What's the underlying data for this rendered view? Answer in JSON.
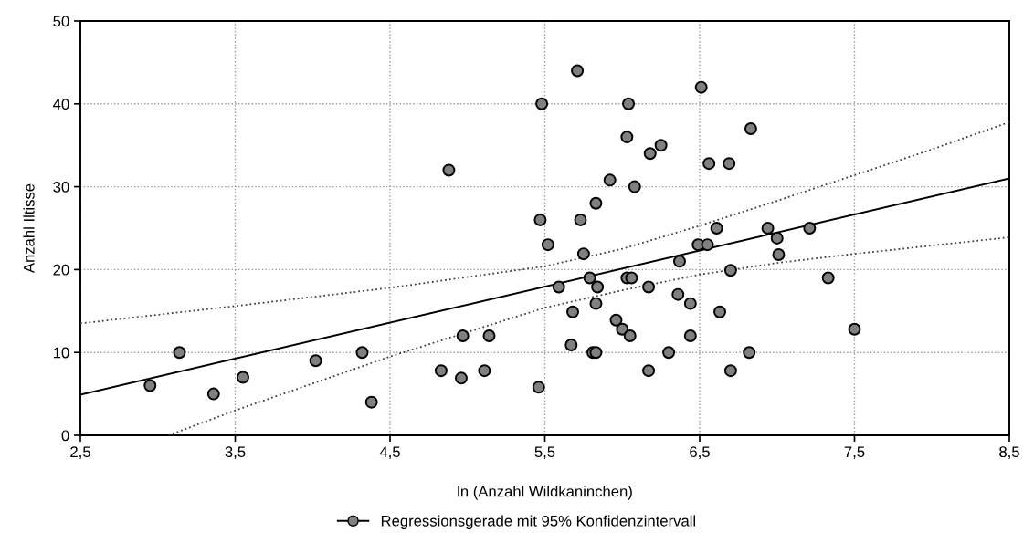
{
  "chart_data": {
    "type": "scatter",
    "xlabel": "ln (Anzahl Wildkaninchen)",
    "ylabel": "Anzahl Iltisse",
    "xlim": [
      2.5,
      8.5
    ],
    "ylim": [
      0,
      50
    ],
    "xticks": [
      {
        "value": 2.5,
        "label": "2,5"
      },
      {
        "value": 3.5,
        "label": "3,5"
      },
      {
        "value": 4.5,
        "label": "4,5"
      },
      {
        "value": 5.5,
        "label": "5,5"
      },
      {
        "value": 6.5,
        "label": "6,5"
      },
      {
        "value": 7.5,
        "label": "7,5"
      },
      {
        "value": 8.5,
        "label": "8,5"
      }
    ],
    "yticks": [
      0,
      10,
      20,
      30,
      40,
      50
    ],
    "grid": true,
    "legend": "bottom",
    "series": [
      {
        "color": "#808080",
        "marker": "circle",
        "x": [
          2.95,
          3.14,
          3.36,
          3.55,
          4.02,
          4.32,
          4.38,
          4.83,
          4.88,
          5.71,
          5.48,
          6.04,
          6.51,
          6.03,
          6.25,
          6.18,
          6.56,
          5.92,
          6.08,
          5.83,
          5.47,
          5.73,
          5.52,
          5.75,
          6.49,
          6.55,
          6.37,
          5.79,
          5.84,
          6.03,
          6.06,
          5.59,
          6.17,
          6.36,
          6.44,
          5.83,
          5.68,
          5.96,
          6.0,
          6.05,
          6.44,
          4.97,
          5.14,
          5.67,
          5.81,
          5.83,
          6.3,
          4.96,
          5.11,
          5.46,
          6.17,
          6.83,
          6.69,
          6.61,
          6.94,
          7.0,
          7.21,
          7.01,
          6.7,
          7.33,
          6.63,
          7.5,
          6.82,
          6.7
        ],
        "values": [
          6,
          10,
          5,
          7,
          9,
          10,
          4,
          7.8,
          32,
          44,
          40,
          40,
          42,
          36,
          35,
          34,
          32.8,
          30.8,
          30,
          28,
          26,
          26,
          23,
          21.9,
          23,
          23,
          21,
          19,
          17.9,
          19,
          19,
          17.9,
          17.9,
          17,
          15.9,
          15.9,
          14.9,
          13.9,
          12.8,
          12,
          12,
          12,
          12,
          10.9,
          10,
          10,
          10,
          6.9,
          7.8,
          5.8,
          7.8,
          37,
          32.8,
          25,
          25,
          23.8,
          25,
          21.8,
          19.9,
          19,
          14.9,
          12.8,
          10,
          7.8
        ]
      },
      {
        "type": "line",
        "name": "Regressionsgerade mit 95% Konfidenzintervall",
        "color": "#000000",
        "line_style": "solid",
        "x": [
          2.5,
          8.5
        ],
        "values": [
          4.9,
          31
        ]
      },
      {
        "type": "line",
        "color": "#404040",
        "line_style": "dotted",
        "x": [
          2.5,
          3.5,
          4.5,
          5.5,
          6.0,
          6.5,
          7.0,
          7.5,
          8.0,
          8.5
        ],
        "values": [
          13.5,
          15.6,
          17.8,
          20.4,
          22.5,
          25.3,
          28.3,
          31.4,
          34.5,
          37.8
        ]
      },
      {
        "type": "line",
        "color": "#404040",
        "line_style": "dotted",
        "x": [
          3.07,
          3.5,
          4.5,
          5.5,
          6.0,
          6.5,
          7.0,
          7.5,
          8.0,
          8.5
        ],
        "values": [
          0,
          3.0,
          9.5,
          15.4,
          17.5,
          19.4,
          20.8,
          21.9,
          22.9,
          23.9
        ]
      }
    ]
  }
}
